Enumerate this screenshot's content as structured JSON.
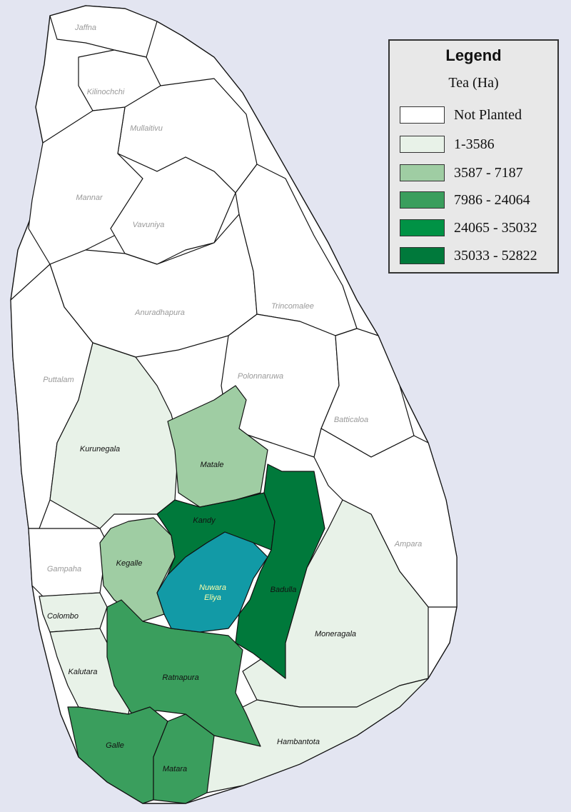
{
  "legend": {
    "title": "Legend",
    "subtitle": "Tea (Ha)",
    "items": [
      {
        "label": "Not Planted",
        "color": "#ffffff"
      },
      {
        "label": "1-3586",
        "color": "#e8f2e8"
      },
      {
        "label": "3587 - 7187",
        "color": "#9fcda3"
      },
      {
        "label": "7986 - 24064",
        "color": "#3a9e5d"
      },
      {
        "label": "24065 - 35032",
        "color": "#009245"
      },
      {
        "label": "35033 - 52822",
        "color": "#00793b"
      }
    ]
  },
  "highlight_color": "#129aa6",
  "districts": [
    {
      "name": "Jaffna",
      "class": 0
    },
    {
      "name": "Kilinochchi",
      "class": 0
    },
    {
      "name": "Mullaitivu",
      "class": 0
    },
    {
      "name": "Mannar",
      "class": 0
    },
    {
      "name": "Vavuniya",
      "class": 0
    },
    {
      "name": "Anuradhapura",
      "class": 0
    },
    {
      "name": "Trincomalee",
      "class": 0
    },
    {
      "name": "Puttalam",
      "class": 0
    },
    {
      "name": "Polonnaruwa",
      "class": 0
    },
    {
      "name": "Batticaloa",
      "class": 0
    },
    {
      "name": "Ampara",
      "class": 0
    },
    {
      "name": "Gampaha",
      "class": 0
    },
    {
      "name": "Kurunegala",
      "class": 1
    },
    {
      "name": "Colombo",
      "class": 1
    },
    {
      "name": "Kalutara",
      "class": 1
    },
    {
      "name": "Moneragala",
      "class": 1
    },
    {
      "name": "Hambantota",
      "class": 1
    },
    {
      "name": "Matale",
      "class": 2
    },
    {
      "name": "Kegalle",
      "class": 2
    },
    {
      "name": "Ratnapura",
      "class": 3
    },
    {
      "name": "Galle",
      "class": 3
    },
    {
      "name": "Matara",
      "class": 3
    },
    {
      "name": "Kandy",
      "class": 5
    },
    {
      "name": "Badulla",
      "class": 5
    },
    {
      "name": "Nuwara Eliya",
      "class": "highlight"
    }
  ]
}
